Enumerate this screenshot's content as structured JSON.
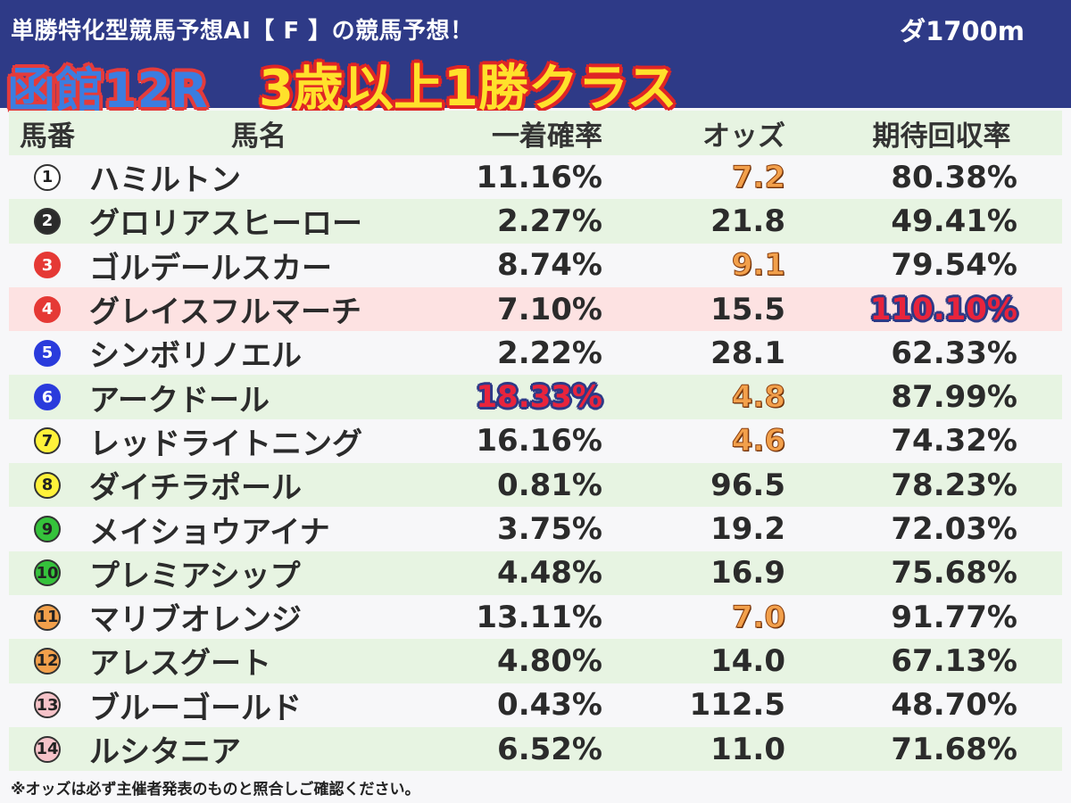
{
  "header": {
    "subtitle": "単勝特化型競馬予想AI【 F 】の競馬予想！",
    "distance": "ダ1700m",
    "venue": "函館12R",
    "race_class": "3歳以上1勝クラス"
  },
  "columns": {
    "num": "馬番",
    "name": "馬名",
    "prob": "一着確率",
    "odds": "オッズ",
    "roi": "期待回収率"
  },
  "rows": [
    {
      "num": "1",
      "name": "ハミルトン",
      "prob": "11.16%",
      "odds": "7.2",
      "roi": "80.38%"
    },
    {
      "num": "2",
      "name": "グロリアスヒーロー",
      "prob": "2.27%",
      "odds": "21.8",
      "roi": "49.41%"
    },
    {
      "num": "3",
      "name": "ゴルデールスカー",
      "prob": "8.74%",
      "odds": "9.1",
      "roi": "79.54%"
    },
    {
      "num": "4",
      "name": "グレイスフルマーチ",
      "prob": "7.10%",
      "odds": "15.5",
      "roi": "110.10%"
    },
    {
      "num": "5",
      "name": "シンボリノエル",
      "prob": "2.22%",
      "odds": "28.1",
      "roi": "62.33%"
    },
    {
      "num": "6",
      "name": "アークドール",
      "prob": "18.33%",
      "odds": "4.8",
      "roi": "87.99%"
    },
    {
      "num": "7",
      "name": "レッドライトニング",
      "prob": "16.16%",
      "odds": "4.6",
      "roi": "74.32%"
    },
    {
      "num": "8",
      "name": "ダイチラポール",
      "prob": "0.81%",
      "odds": "96.5",
      "roi": "78.23%"
    },
    {
      "num": "9",
      "name": "メイショウアイナ",
      "prob": "3.75%",
      "odds": "19.2",
      "roi": "72.03%"
    },
    {
      "num": "10",
      "name": "プレミアシップ",
      "prob": "4.48%",
      "odds": "16.9",
      "roi": "75.68%"
    },
    {
      "num": "11",
      "name": "マリブオレンジ",
      "prob": "13.11%",
      "odds": "7.0",
      "roi": "91.77%"
    },
    {
      "num": "12",
      "name": "アレスグート",
      "prob": "4.80%",
      "odds": "14.0",
      "roi": "67.13%"
    },
    {
      "num": "13",
      "name": "ブルーゴールド",
      "prob": "0.43%",
      "odds": "112.5",
      "roi": "48.70%"
    },
    {
      "num": "14",
      "name": "ルシタニア",
      "prob": "6.52%",
      "odds": "11.0",
      "roi": "71.68%"
    }
  ],
  "footer": {
    "note": "※オッズは必ず主催者発表のものと照合しご確認ください。"
  }
}
